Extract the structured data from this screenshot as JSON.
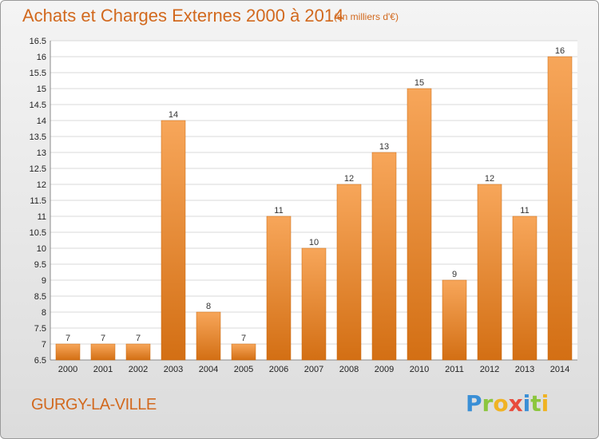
{
  "chart_data": {
    "type": "bar",
    "title": "Achats et Charges Externes 2000 à 2014",
    "subtitle": "(en milliers d'€)",
    "categories": [
      "2000",
      "2001",
      "2002",
      "2003",
      "2004",
      "2005",
      "2006",
      "2007",
      "2008",
      "2009",
      "2010",
      "2011",
      "2012",
      "2013",
      "2014"
    ],
    "values": [
      7,
      7,
      7,
      14,
      8,
      7,
      11,
      10,
      12,
      13,
      15,
      9,
      12,
      11,
      16
    ],
    "ylim": [
      6.5,
      16.5
    ],
    "yticks": [
      "6.5",
      "7",
      "7.5",
      "8",
      "8.5",
      "9",
      "9.5",
      "10",
      "10.5",
      "11",
      "11.5",
      "12",
      "12.5",
      "13",
      "13.5",
      "14",
      "14.5",
      "15",
      "15.5",
      "16",
      "16.5"
    ],
    "xlabel": "",
    "ylabel": "",
    "grid": true,
    "bar_color": "#e8872f",
    "bar_color_light": "#f7a65a",
    "bar_color_dark": "#d36f14"
  },
  "location": "GURGY-LA-VILLE",
  "brand": {
    "letters": [
      "P",
      "r",
      "o",
      "x",
      "i",
      "t",
      "i"
    ],
    "colors": [
      "#3a8fd6",
      "#8cc63e",
      "#f0b323",
      "#e84c3d",
      "#3a8fd6",
      "#8cc63e",
      "#f0b323"
    ]
  }
}
